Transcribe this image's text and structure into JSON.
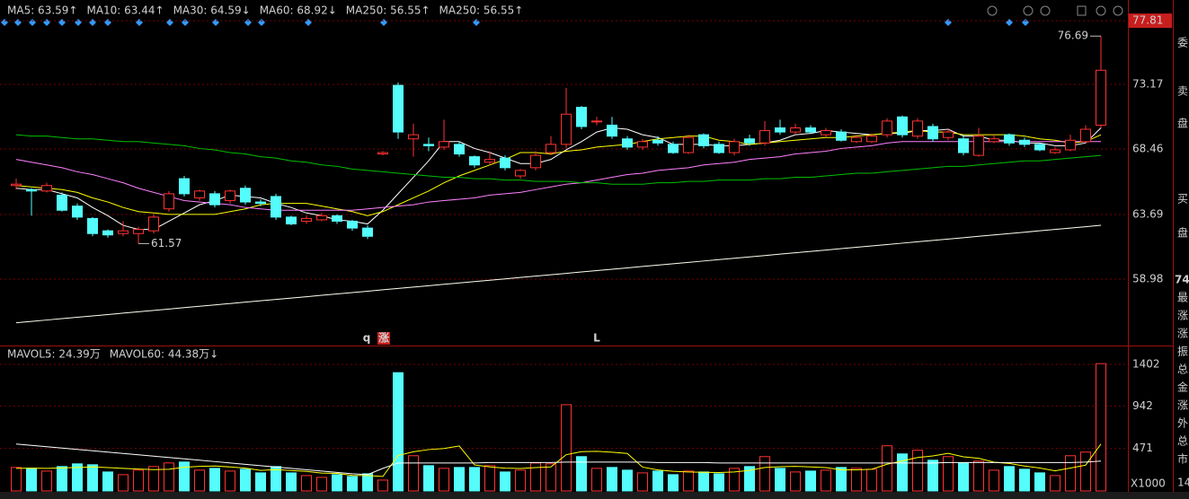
{
  "chart_data": [
    {
      "type": "candlestick",
      "up_color": "#ff3232",
      "down_color": "#54fcfc",
      "open": [
        65.8,
        65.5,
        65.4,
        65.1,
        64.3,
        63.4,
        62.5,
        62.3,
        62.3,
        62.5,
        64.1,
        66.3,
        64.9,
        65.2,
        64.7,
        65.6,
        64.6,
        65.0,
        63.5,
        63.2,
        63.3,
        63.6,
        63.2,
        62.7,
        68.1,
        73.1,
        69.2,
        68.8,
        68.6,
        68.8,
        67.9,
        67.5,
        67.8,
        66.5,
        67.1,
        68.2,
        68.8,
        71.5,
        70.5,
        70.2,
        69.2,
        68.6,
        69.1,
        68.8,
        68.2,
        69.5,
        68.8,
        68.2,
        69.2,
        68.9,
        70.0,
        69.7,
        70.0,
        69.5,
        69.7,
        69.0,
        69.0,
        69.5,
        70.8,
        69.4,
        70.1,
        69.3,
        69.2,
        68.0,
        69.0,
        69.5,
        69.1,
        68.8,
        68.2,
        68.4,
        69.0,
        70.2
      ],
      "high": [
        66.3,
        65.6,
        66.0,
        65.3,
        64.5,
        63.5,
        62.6,
        63.2,
        62.8,
        63.7,
        65.4,
        66.5,
        65.5,
        65.4,
        65.5,
        65.8,
        64.8,
        65.2,
        63.6,
        63.6,
        63.8,
        63.7,
        63.3,
        62.9,
        68.3,
        73.3,
        70.3,
        69.3,
        70.6,
        69.0,
        68.0,
        68.3,
        68.0,
        67.0,
        68.3,
        69.4,
        72.9,
        71.6,
        70.8,
        70.8,
        69.4,
        69.2,
        69.4,
        69.0,
        69.5,
        69.6,
        69.0,
        69.2,
        69.5,
        70.5,
        70.6,
        70.3,
        70.2,
        70.0,
        69.9,
        69.5,
        69.6,
        70.7,
        70.9,
        70.7,
        70.3,
        69.9,
        69.5,
        70.0,
        69.5,
        69.6,
        69.3,
        68.9,
        68.6,
        69.5,
        70.2,
        76.69
      ],
      "low": [
        65.5,
        63.6,
        65.3,
        63.9,
        63.3,
        62.1,
        62.0,
        62.1,
        61.57,
        62.3,
        63.9,
        65.0,
        64.7,
        64.2,
        64.5,
        64.4,
        64.3,
        63.3,
        62.9,
        63.0,
        63.2,
        63.0,
        62.5,
        61.9,
        68.0,
        69.2,
        67.9,
        68.3,
        68.4,
        67.9,
        67.1,
        67.3,
        66.9,
        66.3,
        66.9,
        68.0,
        68.5,
        69.9,
        70.2,
        69.2,
        68.4,
        68.4,
        68.7,
        68.1,
        68.1,
        68.5,
        68.1,
        68.0,
        68.7,
        68.7,
        69.5,
        69.5,
        69.6,
        69.3,
        69.0,
        68.9,
        68.9,
        69.3,
        69.3,
        69.2,
        69.0,
        69.1,
        68.0,
        67.9,
        68.9,
        68.7,
        68.6,
        68.3,
        68.1,
        68.3,
        68.9,
        70.0
      ],
      "close": [
        65.9,
        65.4,
        65.8,
        64.0,
        63.5,
        62.3,
        62.2,
        62.5,
        62.6,
        63.5,
        65.2,
        65.2,
        65.4,
        64.4,
        65.4,
        64.6,
        64.5,
        63.5,
        63.0,
        63.4,
        63.6,
        63.2,
        62.7,
        62.1,
        68.2,
        69.7,
        69.5,
        68.7,
        69.0,
        68.1,
        67.3,
        67.7,
        67.1,
        66.9,
        68.0,
        68.8,
        71.0,
        70.1,
        70.5,
        69.4,
        68.6,
        69.0,
        68.9,
        68.2,
        69.3,
        68.7,
        68.2,
        69.0,
        68.9,
        69.8,
        69.7,
        70.0,
        69.7,
        69.8,
        69.1,
        69.3,
        69.4,
        70.5,
        69.5,
        70.5,
        69.2,
        69.7,
        68.2,
        69.4,
        69.2,
        68.9,
        68.8,
        68.4,
        68.4,
        69.1,
        69.9,
        74.2
      ],
      "series": [
        {
          "name": "MA5: 63.59↑",
          "color": "#ffffff",
          "values": [
            65.6,
            65.5,
            65.5,
            65.2,
            64.9,
            64.2,
            63.6,
            62.9,
            62.6,
            62.6,
            63.2,
            63.8,
            64.4,
            64.7,
            65.1,
            65.0,
            64.9,
            64.5,
            64.2,
            63.8,
            63.6,
            63.3,
            63.2,
            63.0,
            64.0,
            65.2,
            66.4,
            67.6,
            69.0,
            69.0,
            68.5,
            68.2,
            67.8,
            67.4,
            67.4,
            67.7,
            68.4,
            69.0,
            69.7,
            70.0,
            69.9,
            69.5,
            69.3,
            68.8,
            68.8,
            68.8,
            68.7,
            68.7,
            68.8,
            68.9,
            69.1,
            69.5,
            69.6,
            69.8,
            69.7,
            69.6,
            69.5,
            69.6,
            69.6,
            69.8,
            69.8,
            69.9,
            69.4,
            69.4,
            69.1,
            69.1,
            68.9,
            68.9,
            68.7,
            68.7,
            68.9,
            70.0
          ]
        },
        {
          "name": "MA10: 63.44↑",
          "color": "#ffff00",
          "values": [
            65.8,
            65.7,
            65.6,
            65.5,
            65.3,
            64.9,
            64.6,
            64.2,
            63.9,
            63.8,
            63.7,
            63.7,
            63.7,
            63.7,
            63.9,
            64.1,
            64.4,
            64.5,
            64.5,
            64.5,
            64.3,
            64.1,
            63.9,
            63.6,
            63.9,
            64.4,
            64.9,
            65.4,
            66.0,
            66.5,
            66.9,
            67.3,
            67.7,
            68.2,
            68.2,
            68.1,
            68.3,
            68.4,
            68.6,
            68.7,
            68.8,
            69.0,
            69.2,
            69.3,
            69.4,
            69.4,
            69.1,
            69.0,
            68.8,
            68.9,
            69.0,
            69.1,
            69.2,
            69.3,
            69.3,
            69.4,
            69.5,
            69.6,
            69.7,
            69.8,
            69.7,
            69.7,
            69.5,
            69.5,
            69.5,
            69.5,
            69.4,
            69.2,
            69.1,
            68.9,
            69.0,
            69.5
          ]
        },
        {
          "name": "MA30: 64.59↓",
          "color": "#ff80ff",
          "values": [
            67.7,
            67.5,
            67.3,
            67.1,
            66.8,
            66.6,
            66.3,
            66.0,
            65.6,
            65.3,
            65.0,
            64.7,
            64.6,
            64.5,
            64.4,
            64.2,
            64.1,
            64.0,
            64.0,
            64.0,
            64.0,
            64.0,
            64.0,
            64.1,
            64.2,
            64.3,
            64.4,
            64.6,
            64.7,
            64.8,
            64.9,
            65.1,
            65.2,
            65.3,
            65.5,
            65.7,
            65.9,
            66.0,
            66.2,
            66.4,
            66.6,
            66.7,
            66.9,
            67.0,
            67.1,
            67.3,
            67.4,
            67.5,
            67.7,
            67.8,
            67.9,
            68.1,
            68.2,
            68.3,
            68.5,
            68.6,
            68.7,
            68.9,
            69.0,
            69.0,
            69.0,
            69.0,
            69.0,
            69.0,
            69.0,
            69.0,
            69.0,
            69.0,
            69.0,
            69.0,
            69.0,
            69.0
          ]
        },
        {
          "name": "MA60: 68.92↓",
          "color": "#00c000",
          "values": [
            69.5,
            69.4,
            69.4,
            69.3,
            69.2,
            69.2,
            69.1,
            69.0,
            69.0,
            68.9,
            68.8,
            68.7,
            68.5,
            68.4,
            68.2,
            68.1,
            67.9,
            67.8,
            67.6,
            67.5,
            67.3,
            67.2,
            67.0,
            66.9,
            66.8,
            66.7,
            66.6,
            66.5,
            66.4,
            66.4,
            66.3,
            66.3,
            66.2,
            66.2,
            66.1,
            66.1,
            66.1,
            66.0,
            66.0,
            65.9,
            65.9,
            65.9,
            66.0,
            66.0,
            66.1,
            66.1,
            66.2,
            66.2,
            66.2,
            66.3,
            66.3,
            66.4,
            66.4,
            66.5,
            66.6,
            66.7,
            66.7,
            66.8,
            66.9,
            67.0,
            67.1,
            67.2,
            67.2,
            67.3,
            67.4,
            67.5,
            67.6,
            67.6,
            67.7,
            67.8,
            67.9,
            68.0
          ]
        },
        {
          "name": "MA250: 56.55↑",
          "color": "#54fcfc",
          "values": [
            null,
            null,
            null,
            null,
            null,
            null,
            null,
            null,
            null,
            null,
            null,
            null,
            null,
            null,
            null,
            null,
            null,
            null,
            null,
            null,
            null,
            null,
            null,
            null,
            null,
            null,
            null,
            null,
            null,
            null,
            null,
            null,
            null,
            null,
            null,
            null,
            null,
            null,
            null,
            null,
            null,
            null,
            null,
            null,
            null,
            null,
            null,
            null,
            null,
            null,
            null,
            null,
            null,
            null,
            null,
            null,
            null,
            null,
            null,
            null,
            null,
            null,
            null,
            null,
            null,
            null,
            null,
            null,
            null,
            null,
            null,
            null
          ]
        },
        {
          "name": "MA250: 56.55↑",
          "color": "#fffff0",
          "values": [
            55.8,
            55.9,
            56.0,
            56.1,
            56.2,
            56.3,
            56.4,
            56.5,
            56.6,
            56.7,
            56.8,
            56.9,
            57.0,
            57.1,
            57.2,
            57.3,
            57.4,
            57.5,
            57.6,
            57.7,
            57.8,
            57.9,
            58.0,
            58.1,
            58.2,
            58.3,
            58.4,
            58.5,
            58.6,
            58.7,
            58.8,
            58.9,
            59.0,
            59.1,
            59.2,
            59.3,
            59.4,
            59.5,
            59.6,
            59.7,
            59.8,
            59.9,
            60.0,
            60.1,
            60.2,
            60.3,
            60.4,
            60.5,
            60.6,
            60.7,
            60.8,
            60.9,
            61.0,
            61.1,
            61.2,
            61.3,
            61.4,
            61.5,
            61.6,
            61.7,
            61.8,
            61.9,
            62.0,
            62.1,
            62.2,
            62.3,
            62.4,
            62.5,
            62.6,
            62.7,
            62.8,
            62.9
          ]
        }
      ],
      "annotations": [
        76.69,
        61.57
      ],
      "signals": [
        "q",
        "涨",
        "L"
      ],
      "ylim": [
        54.14,
        79.32
      ],
      "yticks": [
        77.81,
        73.17,
        68.46,
        63.69,
        58.98
      ],
      "grid": true
    },
    {
      "type": "bar",
      "values": [
        260,
        250,
        220,
        270,
        300,
        290,
        210,
        180,
        230,
        270,
        310,
        320,
        230,
        250,
        220,
        240,
        200,
        270,
        200,
        170,
        150,
        180,
        160,
        190,
        120,
        1310,
        390,
        280,
        250,
        260,
        260,
        280,
        210,
        230,
        310,
        300,
        955,
        380,
        250,
        260,
        230,
        200,
        220,
        180,
        220,
        210,
        190,
        250,
        270,
        380,
        250,
        210,
        220,
        230,
        260,
        250,
        240,
        500,
        410,
        450,
        340,
        380,
        310,
        330,
        230,
        270,
        240,
        200,
        170,
        390,
        430,
        1410
      ],
      "series": [
        {
          "name": "MAVOL5: 24.39万",
          "color": "#ffff00",
          "values": [
            250,
            252,
            250,
            255,
            260,
            266,
            258,
            250,
            242,
            236,
            240,
            262,
            272,
            276,
            266,
            252,
            228,
            236,
            226,
            216,
            198,
            194,
            172,
            170,
            160,
            392,
            434,
            458,
            470,
            498,
            288,
            266,
            252,
            248,
            258,
            266,
            401,
            435,
            439,
            429,
            415,
            264,
            232,
            218,
            210,
            206,
            204,
            210,
            228,
            260,
            268,
            272,
            266,
            258,
            234,
            234,
            240,
            296,
            332,
            370,
            388,
            416,
            378,
            362,
            318,
            304,
            276,
            254,
            222,
            254,
            286,
            520
          ]
        },
        {
          "name": "MAVOL60: 44.38万↓",
          "color": "#ffffff",
          "values": [
            520,
            505,
            490,
            475,
            460,
            445,
            430,
            415,
            400,
            385,
            370,
            355,
            340,
            325,
            310,
            295,
            280,
            265,
            250,
            235,
            220,
            205,
            190,
            180,
            250,
            310,
            310,
            310,
            310,
            310,
            310,
            315,
            315,
            315,
            315,
            315,
            320,
            320,
            320,
            320,
            320,
            320,
            315,
            315,
            315,
            315,
            310,
            310,
            310,
            310,
            310,
            310,
            310,
            310,
            310,
            310,
            310,
            310,
            310,
            310,
            310,
            315,
            315,
            315,
            315,
            315,
            315,
            315,
            315,
            315,
            320,
            330
          ]
        }
      ],
      "unit_label": "X1000",
      "ylim": [
        0,
        1561
      ],
      "yticks": [
        1402,
        942,
        471
      ],
      "grid": true
    }
  ],
  "side_panel": {
    "labels": [
      "委",
      "卖",
      "盘",
      "买",
      "盘"
    ],
    "price": "74",
    "fields": [
      "最",
      "涨",
      "涨",
      "振",
      "总",
      "金",
      "涨",
      "外",
      "总",
      "市"
    ],
    "corner": "14"
  }
}
